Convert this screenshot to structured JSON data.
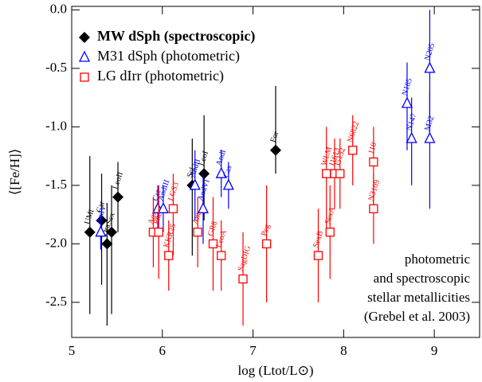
{
  "chart_data": {
    "type": "scatter",
    "xlabel": "log (Ltot/L⊙)",
    "ylabel": "⟨[Fe/H]⟩",
    "annotation": [
      "photometric",
      "and spectroscopic",
      "stellar metallicities",
      "(Grebel et al. 2003)"
    ],
    "xlim": [
      5,
      9.5
    ],
    "ylim": [
      -2.8,
      0.03
    ],
    "xticks": [
      5,
      6,
      7,
      8,
      9
    ],
    "yticks": [
      {
        "value": 0,
        "label": "0.0"
      },
      {
        "value": -0.5,
        "label": "-0.5"
      },
      {
        "value": -1,
        "label": "-1.0"
      },
      {
        "value": -1.5,
        "label": "-1.5"
      },
      {
        "value": -2,
        "label": "-2.0"
      },
      {
        "value": -2.5,
        "label": "-2.5"
      }
    ],
    "series": [
      {
        "name": "MW dSph (spectroscopic)",
        "color": "#000000",
        "marker": "diamond",
        "labels": [
          "UMi",
          "Car",
          "Dra",
          "Sex",
          "LeoII",
          "Scl",
          "LeoI",
          "For"
        ],
        "x": [
          5.2,
          5.33,
          5.39,
          5.44,
          5.51,
          6.33,
          6.46,
          7.25
        ],
        "values": [
          -1.9,
          -1.8,
          -2.0,
          -1.9,
          -1.6,
          -1.5,
          -1.4,
          -1.2
        ],
        "errors": [
          [
            0.7,
            0.65
          ],
          [
            0.55,
            0.4
          ],
          [
            0.7,
            0.35
          ],
          [
            0.7,
            0.4
          ],
          [
            0.3,
            0.3
          ],
          [
            0.6,
            0.4
          ],
          [
            0.4,
            0.5
          ],
          [
            0.2,
            0.55
          ]
        ]
      },
      {
        "name": "M31 dSph (photometric)",
        "color": "#0000ff",
        "marker": "triangle",
        "labels": [
          "AndV",
          "Cet",
          "AndIII",
          "AndII",
          "AndVI",
          "AndI",
          "Cas",
          "N185",
          "N147",
          "M32",
          "N205"
        ],
        "x": [
          5.32,
          5.95,
          6.01,
          6.36,
          6.45,
          6.65,
          6.73,
          8.7,
          8.75,
          8.95,
          8.95
        ],
        "values": [
          -1.9,
          -1.7,
          -1.7,
          -1.5,
          -1.7,
          -1.4,
          -1.5,
          -0.8,
          -1.1,
          -1.1,
          -0.5
        ],
        "errors": [
          [
            0.15,
            0.15
          ],
          [
            0.2,
            0.2
          ],
          [
            0.2,
            0.2
          ],
          [
            0.3,
            0.3
          ],
          [
            0.3,
            0.3
          ],
          [
            0.2,
            0.2
          ],
          [
            0.2,
            0.2
          ],
          [
            0.4,
            0.35
          ],
          [
            0.4,
            0.35
          ],
          [
            0.6,
            0.4
          ],
          [
            0.6,
            0.5
          ]
        ]
      },
      {
        "name": "LG dIrr (photometric)",
        "color": "#ff0000",
        "marker": "square",
        "labels": [
          "Aqr",
          "Phe",
          "KKR25",
          "LGS3",
          "Ant",
          "GR8",
          "LeoA",
          "SagDIG",
          "Peg",
          "SexB",
          "WLM",
          "SexA",
          "I1613",
          "I5152",
          "N6822",
          "110",
          "N3109"
        ],
        "x": [
          5.9,
          5.96,
          6.07,
          6.12,
          6.39,
          6.56,
          6.65,
          6.89,
          7.15,
          7.72,
          7.81,
          7.85,
          7.9,
          7.96,
          8.1,
          8.33,
          8.33
        ],
        "values": [
          -1.9,
          -1.9,
          -2.1,
          -1.7,
          -1.9,
          -2.0,
          -2.1,
          -2.3,
          -2.0,
          -2.1,
          -1.4,
          -1.9,
          -1.4,
          -1.4,
          -1.2,
          -1.3,
          -1.7
        ],
        "errors": [
          [
            0.3,
            0.3
          ],
          [
            0.4,
            0.4
          ],
          [
            0.3,
            0.3
          ],
          [
            0.4,
            0.3
          ],
          [
            0.3,
            0.3
          ],
          [
            0.4,
            0.4
          ],
          [
            0.3,
            0.3
          ],
          [
            0.4,
            0.4
          ],
          [
            0.5,
            0.5
          ],
          [
            0.4,
            0.4
          ],
          [
            0.5,
            0.4
          ],
          [
            0.4,
            0.4
          ],
          [
            0.3,
            0.3
          ],
          [
            0.3,
            0.3
          ],
          [
            0.3,
            0.3
          ],
          [
            0.4,
            0.3
          ],
          [
            0.3,
            0.3
          ]
        ]
      }
    ]
  }
}
